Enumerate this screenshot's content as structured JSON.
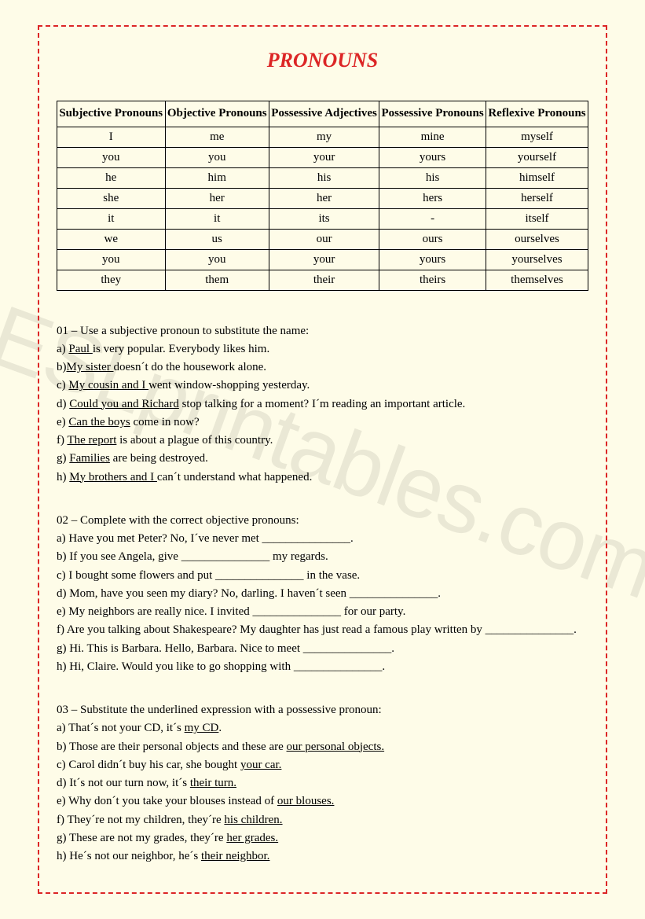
{
  "title": "PRONOUNS",
  "watermark": "ESLprintables.com",
  "table": {
    "headers": [
      "Subjective Pronouns",
      "Objective Pronouns",
      "Possessive Adjectives",
      "Possessive Pronouns",
      "Reflexive Pronouns"
    ],
    "rows": [
      [
        "I",
        "me",
        "my",
        "mine",
        "myself"
      ],
      [
        "you",
        "you",
        "your",
        "yours",
        "yourself"
      ],
      [
        "he",
        "him",
        "his",
        "his",
        "himself"
      ],
      [
        "she",
        "her",
        "her",
        "hers",
        "herself"
      ],
      [
        "it",
        "it",
        "its",
        "-",
        "itself"
      ],
      [
        "we",
        "us",
        "our",
        "ours",
        "ourselves"
      ],
      [
        "you",
        "you",
        "your",
        "yours",
        "yourselves"
      ],
      [
        "they",
        "them",
        "their",
        "theirs",
        "themselves"
      ]
    ]
  },
  "ex1": {
    "title": "01 – Use a subjective pronoun to substitute the name:",
    "items": {
      "a": {
        "pre": "a) ",
        "u": "Paul ",
        "post": "is very popular. Everybody likes him."
      },
      "b": {
        "pre": "b)",
        "u": "My sister ",
        "post": "doesn´t do the housework alone."
      },
      "c": {
        "pre": "c) ",
        "u": "My cousin and I ",
        "post": "went window-shopping yesterday."
      },
      "d": {
        "pre": "d) ",
        "u": "Could you and Richard",
        "post": " stop talking for a moment? I´m reading an important article."
      },
      "e": {
        "pre": "e) ",
        "u": "Can the boys",
        "post": " come in now?"
      },
      "f": {
        "pre": "f) ",
        "u": "The report",
        "post": " is about a plague of this country."
      },
      "g": {
        "pre": "g) ",
        "u": "Families",
        "post": " are being destroyed."
      },
      "h": {
        "pre": "h) ",
        "u": "My brothers and I ",
        "post": "can´t understand what happened."
      }
    }
  },
  "ex2": {
    "title": "02 – Complete with the correct objective pronouns:",
    "a": "a) Have you met Peter? No, I´ve never met _______________.",
    "b": "b) If you see Angela,  give _______________ my regards.",
    "c": "c) I bought some flowers and put _______________ in the vase.",
    "d": "d) Mom, have you seen my diary? No, darling. I haven´t seen _______________.",
    "e": "e) My neighbors are really nice. I invited _______________ for our party.",
    "f": "f)  Are  you  talking  about  Shakespeare?  My  daughter  has  just  read  a  famous  play  written  by _______________.",
    "g": "g) Hi. This is Barbara. Hello, Barbara. Nice to meet _______________.",
    "h": "h) Hi, Claire. Would you like to go shopping with _______________."
  },
  "ex3": {
    "title": "03 – Substitute the underlined expression with a possessive pronoun:",
    "items": {
      "a": {
        "pre": "a) That´s not your CD, it´s ",
        "u": "my CD",
        "post": "."
      },
      "b": {
        "pre": "b) Those are their personal objects and these are ",
        "u": "our personal objects.",
        "post": ""
      },
      "c": {
        "pre": "c) Carol didn´t buy his car, she bought ",
        "u": "your car.",
        "post": ""
      },
      "d": {
        "pre": "d) It´s not our turn now, it´s ",
        "u": "their turn.",
        "post": ""
      },
      "e": {
        "pre": "e) Why don´t you take your blouses instead of ",
        "u": "our blouses.",
        "post": ""
      },
      "f": {
        "pre": "f) They´re not my children, they´re ",
        "u": "his children.",
        "post": ""
      },
      "g": {
        "pre": "g) These are not my grades, they´re ",
        "u": "her grades.",
        "post": ""
      },
      "h": {
        "pre": "h) He´s not our neighbor, he´s ",
        "u": "their neighbor.",
        "post": ""
      }
    }
  }
}
